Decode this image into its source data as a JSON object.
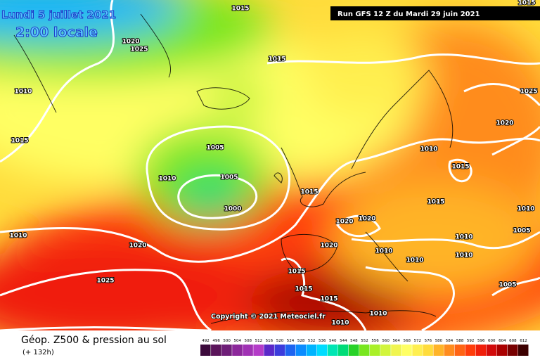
{
  "header": {
    "date": "Lundi 5 juillet 2021",
    "time": "2:00 locale",
    "run": "Run GFS 12 Z du Mardi 29 juin 2021"
  },
  "isobar_labels": [
    1015,
    1020,
    1025,
    1010,
    1015,
    1015,
    1005,
    1010,
    1005,
    1000,
    1015,
    1010,
    1015,
    1020,
    1025,
    1020,
    1020,
    1015,
    1010,
    1005,
    1010,
    1010,
    1010,
    1010,
    1020,
    1020,
    1010,
    1025,
    1015,
    1015,
    1015,
    1010,
    1010,
    1005,
    1015
  ],
  "copyright": "Copyright © 2021 Meteociel.fr",
  "footer": {
    "title": "Géop. Z500 & pression au sol",
    "lead": "(+ 132h)"
  },
  "legend": {
    "labels": [
      492,
      496,
      500,
      504,
      508,
      512,
      516,
      520,
      524,
      528,
      532,
      536,
      540,
      544,
      548,
      552,
      556,
      560,
      564,
      568,
      572,
      576,
      580,
      584,
      588,
      592,
      596,
      600,
      604,
      608,
      612
    ],
    "colors": [
      "#3c0a3c",
      "#5a145a",
      "#6e1e78",
      "#8c289b",
      "#a032b4",
      "#b43cc8",
      "#5a28c8",
      "#3c3cdc",
      "#1e64f0",
      "#0a8cff",
      "#00b4ff",
      "#00dcff",
      "#00e6b4",
      "#00dc78",
      "#28d228",
      "#78e61e",
      "#aaf028",
      "#d2f53c",
      "#f0f550",
      "#ffff64",
      "#ffef50",
      "#ffdc3c",
      "#ffb428",
      "#ff8c1e",
      "#ff6414",
      "#ff3c0a",
      "#f01e0a",
      "#d20a0a",
      "#aa0000",
      "#780000",
      "#3c0000"
    ]
  }
}
